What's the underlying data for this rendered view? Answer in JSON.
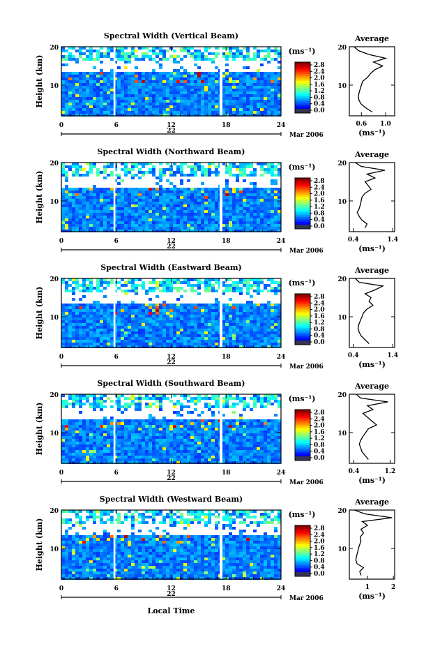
{
  "chart_data": {
    "type": "heatmap",
    "figure": {
      "xlabel": "Local Time",
      "date_label": "Mar 2006",
      "day_label": "22",
      "x_ticks": [
        "0",
        "6",
        "12",
        "18",
        "24"
      ],
      "y_ticks": [
        "20",
        "10"
      ],
      "ylabel": "Height (km)",
      "colorbar_unit": "(ms⁻¹)",
      "colorbar_ticks": [
        "2.8",
        "2.4",
        "2.0",
        "1.6",
        "1.2",
        "0.8",
        "0.4",
        "0.0"
      ],
      "colorbar_range": [
        0.0,
        3.0
      ],
      "x_range": [
        0,
        24
      ],
      "y_range": [
        2,
        20
      ],
      "data_gaps_hours": [
        [
          5.7,
          5.9
        ],
        [
          17.3,
          17.6
        ]
      ],
      "average_title": "Average",
      "average_xlabel": "(ms⁻¹)"
    },
    "panels": [
      {
        "title": "Spectral Width (Vertical Beam)",
        "avg_xlim": [
          0.4,
          1.15
        ],
        "avg_xticks": [
          "0.6",
          "1.0"
        ],
        "avg_xtick_values": [
          0.6,
          1.0
        ],
        "average_profile": {
          "height_km": [
            3,
            4,
            5,
            6,
            7,
            8,
            9,
            10,
            11,
            12,
            13,
            14,
            15,
            16,
            17,
            18,
            19,
            20
          ],
          "width_ms": [
            0.78,
            0.68,
            0.6,
            0.56,
            0.55,
            0.56,
            0.58,
            0.6,
            0.62,
            0.7,
            0.75,
            0.82,
            0.95,
            0.8,
            1.0,
            0.72,
            0.55,
            0.48
          ]
        }
      },
      {
        "title": "Spectral Width (Northward Beam)",
        "avg_xlim": [
          0.3,
          1.45
        ],
        "avg_xticks": [
          "0.4",
          "1.4"
        ],
        "avg_xtick_values": [
          0.4,
          1.4
        ],
        "average_profile": {
          "height_km": [
            3,
            4,
            5,
            6,
            7,
            8,
            9,
            10,
            11,
            12,
            13,
            14,
            15,
            16,
            17,
            18,
            19,
            20
          ],
          "width_ms": [
            0.7,
            0.75,
            0.62,
            0.55,
            0.5,
            0.55,
            0.58,
            0.6,
            0.62,
            0.7,
            0.85,
            0.78,
            0.7,
            0.95,
            0.75,
            1.2,
            0.6,
            0.45
          ]
        }
      },
      {
        "title": "Spectral Width (Eastward Beam)",
        "avg_xlim": [
          0.3,
          1.45
        ],
        "avg_xticks": [
          "0.4",
          "1.4"
        ],
        "avg_xtick_values": [
          0.4,
          1.4
        ],
        "average_profile": {
          "height_km": [
            3,
            4,
            5,
            6,
            7,
            8,
            9,
            10,
            11,
            12,
            13,
            14,
            15,
            16,
            17,
            18,
            19,
            20
          ],
          "width_ms": [
            0.8,
            0.7,
            0.6,
            0.55,
            0.52,
            0.54,
            0.58,
            0.62,
            0.66,
            0.75,
            0.9,
            0.8,
            0.85,
            0.7,
            0.95,
            1.15,
            0.55,
            0.45
          ]
        }
      },
      {
        "title": "Spectral Width (Southward Beam)",
        "avg_xlim": [
          0.3,
          1.3
        ],
        "avg_xticks": [
          "0.4",
          "1.2"
        ],
        "avg_xtick_values": [
          0.4,
          1.2
        ],
        "average_profile": {
          "height_km": [
            3,
            4,
            5,
            6,
            7,
            8,
            9,
            10,
            11,
            12,
            13,
            14,
            15,
            16,
            17,
            18,
            19,
            20
          ],
          "width_ms": [
            0.72,
            0.65,
            0.58,
            0.55,
            0.52,
            0.55,
            0.6,
            0.66,
            0.72,
            0.9,
            0.8,
            0.7,
            0.6,
            0.82,
            0.7,
            1.15,
            0.55,
            0.45
          ]
        }
      },
      {
        "title": "Spectral Width (Westward Beam)",
        "avg_xlim": [
          0.3,
          2.05
        ],
        "avg_xticks": [
          "1",
          "2"
        ],
        "avg_xtick_values": [
          1,
          2
        ],
        "average_profile": {
          "height_km": [
            3,
            4,
            5,
            6,
            7,
            8,
            9,
            10,
            11,
            12,
            13,
            14,
            15,
            16,
            17,
            18,
            19,
            20
          ],
          "width_ms": [
            0.75,
            0.7,
            0.85,
            0.6,
            0.55,
            0.58,
            0.62,
            0.65,
            0.7,
            0.75,
            0.72,
            0.85,
            0.75,
            1.0,
            0.8,
            1.95,
            0.9,
            0.5
          ]
        }
      }
    ]
  }
}
